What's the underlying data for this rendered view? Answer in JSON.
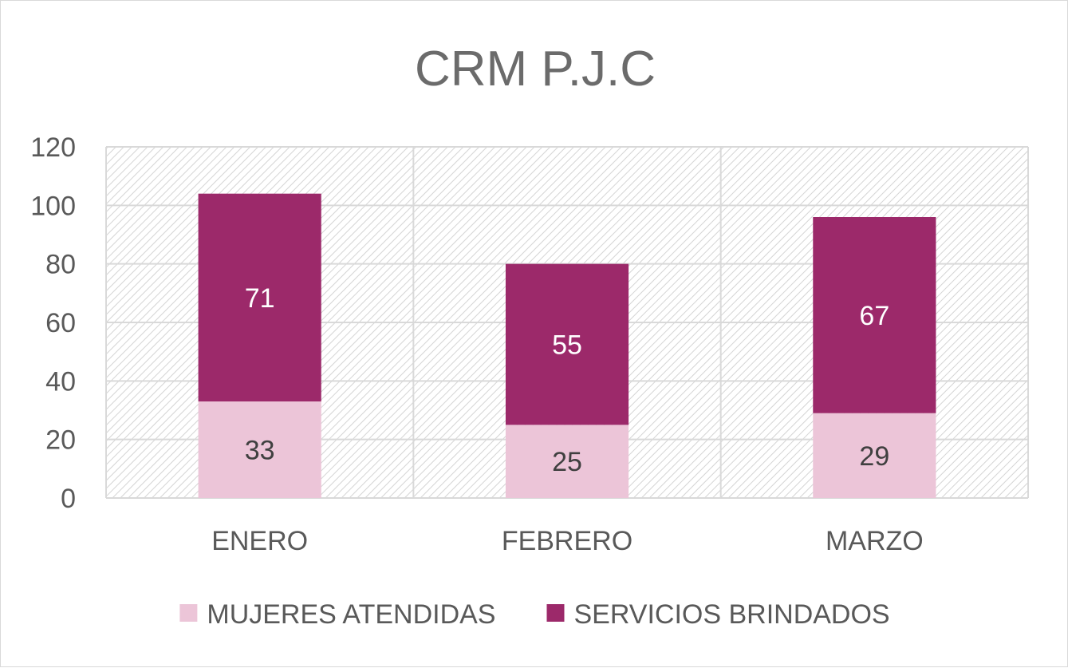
{
  "chart_data": {
    "type": "bar",
    "stacked": true,
    "title": "CRM P.J.C",
    "categories": [
      "ENERO",
      "FEBRERO",
      "MARZO"
    ],
    "series": [
      {
        "name": "MUJERES ATENDIDAS",
        "values": [
          33,
          25,
          29
        ],
        "color": "#ecc5d8"
      },
      {
        "name": "SERVICIOS BRINDADOS",
        "values": [
          71,
          55,
          67
        ],
        "color": "#9c296a"
      }
    ],
    "ylim": [
      0,
      120
    ],
    "yticks": [
      0,
      20,
      40,
      60,
      80,
      100,
      120
    ],
    "grid": true,
    "legend": "bottom"
  }
}
